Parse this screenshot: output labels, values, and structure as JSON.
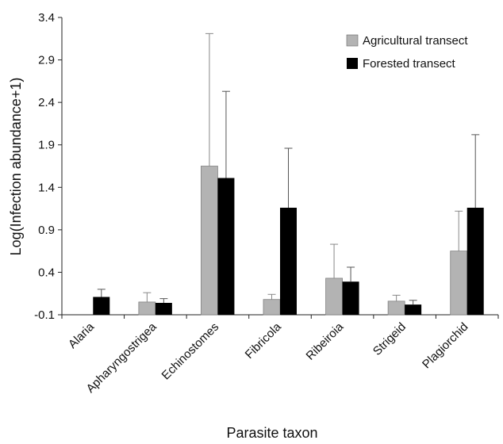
{
  "chart_data": {
    "type": "bar",
    "title": "",
    "xlabel": "Parasite taxon",
    "ylabel": "Log(Infection abundance+1)",
    "ylim": [
      -0.1,
      3.4
    ],
    "yticks": [
      "-0.1",
      "0.4",
      "0.9",
      "1.4",
      "1.9",
      "2.4",
      "2.9",
      "3.4"
    ],
    "grid": false,
    "legend_position": "top-right",
    "categories": [
      "Alaria",
      "Apharyngostrigea",
      "Echinostomes",
      "Fibricola",
      "Ribeiroia",
      "Strigeid",
      "Plagiorchid"
    ],
    "series": [
      {
        "name": "Agricultural transect",
        "color": "#b3b3b3",
        "values": [
          null,
          0.05,
          1.65,
          0.08,
          0.33,
          0.06,
          0.65
        ],
        "error": [
          null,
          0.11,
          1.56,
          0.06,
          0.4,
          0.07,
          0.47
        ]
      },
      {
        "name": "Forested transect",
        "color": "#000000",
        "values": [
          0.11,
          0.04,
          1.51,
          1.16,
          0.29,
          0.02,
          1.16
        ],
        "error": [
          0.09,
          0.05,
          1.02,
          0.7,
          0.17,
          0.05,
          0.86
        ]
      }
    ]
  }
}
